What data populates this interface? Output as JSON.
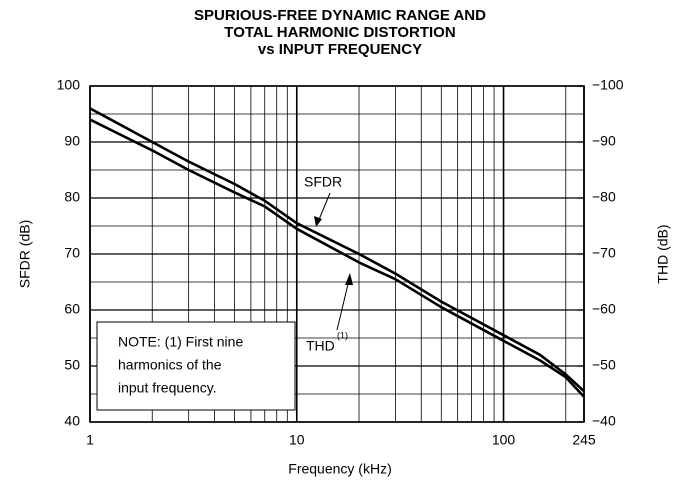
{
  "chart_data": {
    "type": "line",
    "title": [
      "SPURIOUS-FREE DYNAMIC RANGE AND",
      "TOTAL HARMONIC DISTORTION",
      "vs INPUT FREQUENCY"
    ],
    "x_label": "Frequency (kHz)",
    "y_label": "SFDR (dB)",
    "y2_label": "THD (dB)",
    "x_scale": "log",
    "x": [
      1,
      2,
      3,
      5,
      7,
      10,
      20,
      30,
      50,
      100,
      150,
      200,
      245
    ],
    "series": [
      {
        "name": "SFDR",
        "color": "#000000",
        "values": [
          96,
          90,
          86.5,
          82.5,
          79.5,
          75.5,
          70,
          66.5,
          61.5,
          55.5,
          52,
          48.5,
          45.5
        ]
      },
      {
        "name": "THD",
        "color": "#000000",
        "axis": "y2",
        "values": [
          -94,
          -88.5,
          -85,
          -81,
          -78.5,
          -74.5,
          -68.5,
          -65.5,
          -60.5,
          -54.5,
          -51,
          -48,
          -44.5
        ]
      }
    ],
    "xlim": [
      1,
      245
    ],
    "xticks": [
      1,
      10,
      100,
      245
    ],
    "xminorticks": [
      2,
      3,
      4,
      5,
      6,
      7,
      8,
      9,
      20,
      30,
      40,
      50,
      60,
      70,
      80,
      90,
      200
    ],
    "ylim": [
      40,
      100
    ],
    "yticks": [
      40,
      50,
      60,
      70,
      80,
      90,
      100
    ],
    "yminorticks": [
      45,
      55,
      65,
      75,
      85,
      95
    ],
    "y2lim": [
      -40,
      -100
    ],
    "y2ticks": [
      {
        "value": -40,
        "label": "−40"
      },
      {
        "value": -50,
        "label": "−50"
      },
      {
        "value": -60,
        "label": "−60"
      },
      {
        "value": -70,
        "label": "−70"
      },
      {
        "value": -80,
        "label": "−80"
      },
      {
        "value": -90,
        "label": "−90"
      },
      {
        "value": -100,
        "label": "−100"
      }
    ],
    "grid": true,
    "annotations": {
      "sfdr": "SFDR",
      "thd": "THD",
      "thd_sup": "(1)",
      "note": [
        "NOTE: (1) First nine",
        "harmonics of the",
        "input frequency."
      ]
    }
  }
}
